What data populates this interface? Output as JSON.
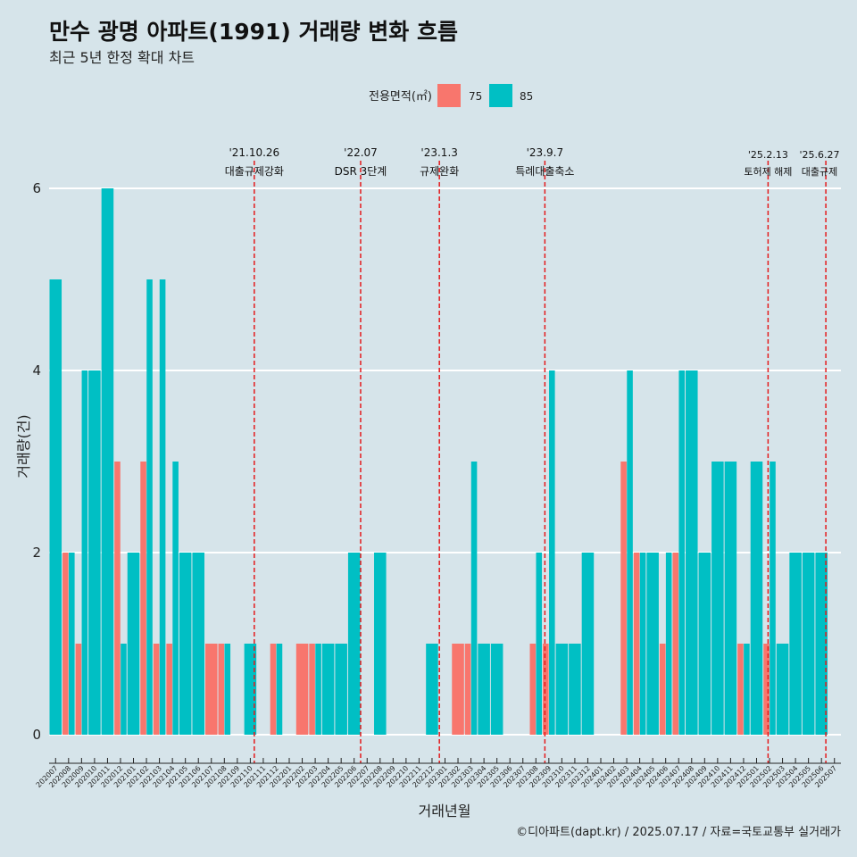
{
  "title": "만수 광명 아파트(1991) 거래량 변화 흐름",
  "subtitle": "최근 5년 한정 확대 차트",
  "caption": "©디아파트(dapt.kr) / 2025.07.17 / 자료=국토교통부 실거래가",
  "colors": {
    "background": "#d6e4ea",
    "s75": "#f8766d",
    "s85": "#00bfc4",
    "event_line": "#e41a1c",
    "grid": "#ffffff"
  },
  "chart_data": {
    "type": "bar",
    "title": "만수 광명 아파트(1991) 거래량 변화 흐름",
    "subtitle": "최근 5년 한정 확대 차트",
    "xlabel": "거래년월",
    "ylabel": "거래량(건)",
    "ylim": [
      0,
      6
    ],
    "y_ticks": [
      0,
      2,
      4,
      6
    ],
    "grid": true,
    "legend_title": "전용면적(㎡)",
    "legend_position": "top",
    "categories": [
      "202007",
      "202008",
      "202009",
      "202010",
      "202011",
      "202012",
      "202101",
      "202102",
      "202103",
      "202104",
      "202105",
      "202106",
      "202107",
      "202108",
      "202109",
      "202110",
      "202111",
      "202112",
      "202201",
      "202202",
      "202203",
      "202204",
      "202205",
      "202206",
      "202207",
      "202208",
      "202209",
      "202210",
      "202211",
      "202212",
      "202301",
      "202302",
      "202303",
      "202304",
      "202305",
      "202306",
      "202307",
      "202308",
      "202309",
      "202310",
      "202311",
      "202312",
      "202401",
      "202402",
      "202403",
      "202404",
      "202405",
      "202406",
      "202407",
      "202408",
      "202409",
      "202410",
      "202411",
      "202412",
      "202501",
      "202502",
      "202503",
      "202504",
      "202505",
      "202506",
      "202507"
    ],
    "series": [
      {
        "name": "75",
        "values": [
          0,
          2,
          1,
          0,
          0,
          3,
          0,
          3,
          1,
          1,
          0,
          0,
          1,
          1,
          0,
          0,
          0,
          1,
          0,
          1,
          1,
          0,
          0,
          0,
          0,
          0,
          0,
          0,
          0,
          0,
          0,
          1,
          1,
          0,
          0,
          0,
          0,
          1,
          1,
          0,
          0,
          0,
          0,
          0,
          3,
          2,
          0,
          1,
          2,
          0,
          0,
          0,
          0,
          1,
          0,
          1,
          0,
          0,
          0,
          0,
          0
        ]
      },
      {
        "name": "85",
        "values": [
          5,
          2,
          4,
          4,
          6,
          1,
          2,
          5,
          5,
          3,
          2,
          2,
          0,
          1,
          0,
          1,
          0,
          1,
          0,
          0,
          1,
          1,
          1,
          2,
          0,
          2,
          0,
          0,
          0,
          1,
          0,
          0,
          3,
          1,
          1,
          0,
          0,
          2,
          4,
          1,
          1,
          2,
          0,
          0,
          4,
          2,
          2,
          2,
          4,
          4,
          2,
          3,
          3,
          1,
          3,
          3,
          1,
          2,
          2,
          2,
          0
        ]
      }
    ],
    "events": [
      {
        "date_label": "'21.10.26",
        "desc": "대출규제강화",
        "month": "202110",
        "day": 26
      },
      {
        "date_label": "'22.07",
        "desc": "DSR 3단계",
        "month": "202207",
        "day": 1
      },
      {
        "date_label": "'23.1.3",
        "desc": "규제완화",
        "month": "202301",
        "day": 3
      },
      {
        "date_label": "'23.9.7",
        "desc": "특례대출축소",
        "month": "202309",
        "day": 7
      },
      {
        "date_label": "'25.2.13",
        "desc": "토허제 해제",
        "month": "202502",
        "day": 13
      },
      {
        "date_label": "'25.6.27",
        "desc": "대출규제",
        "month": "202506",
        "day": 27
      }
    ]
  }
}
